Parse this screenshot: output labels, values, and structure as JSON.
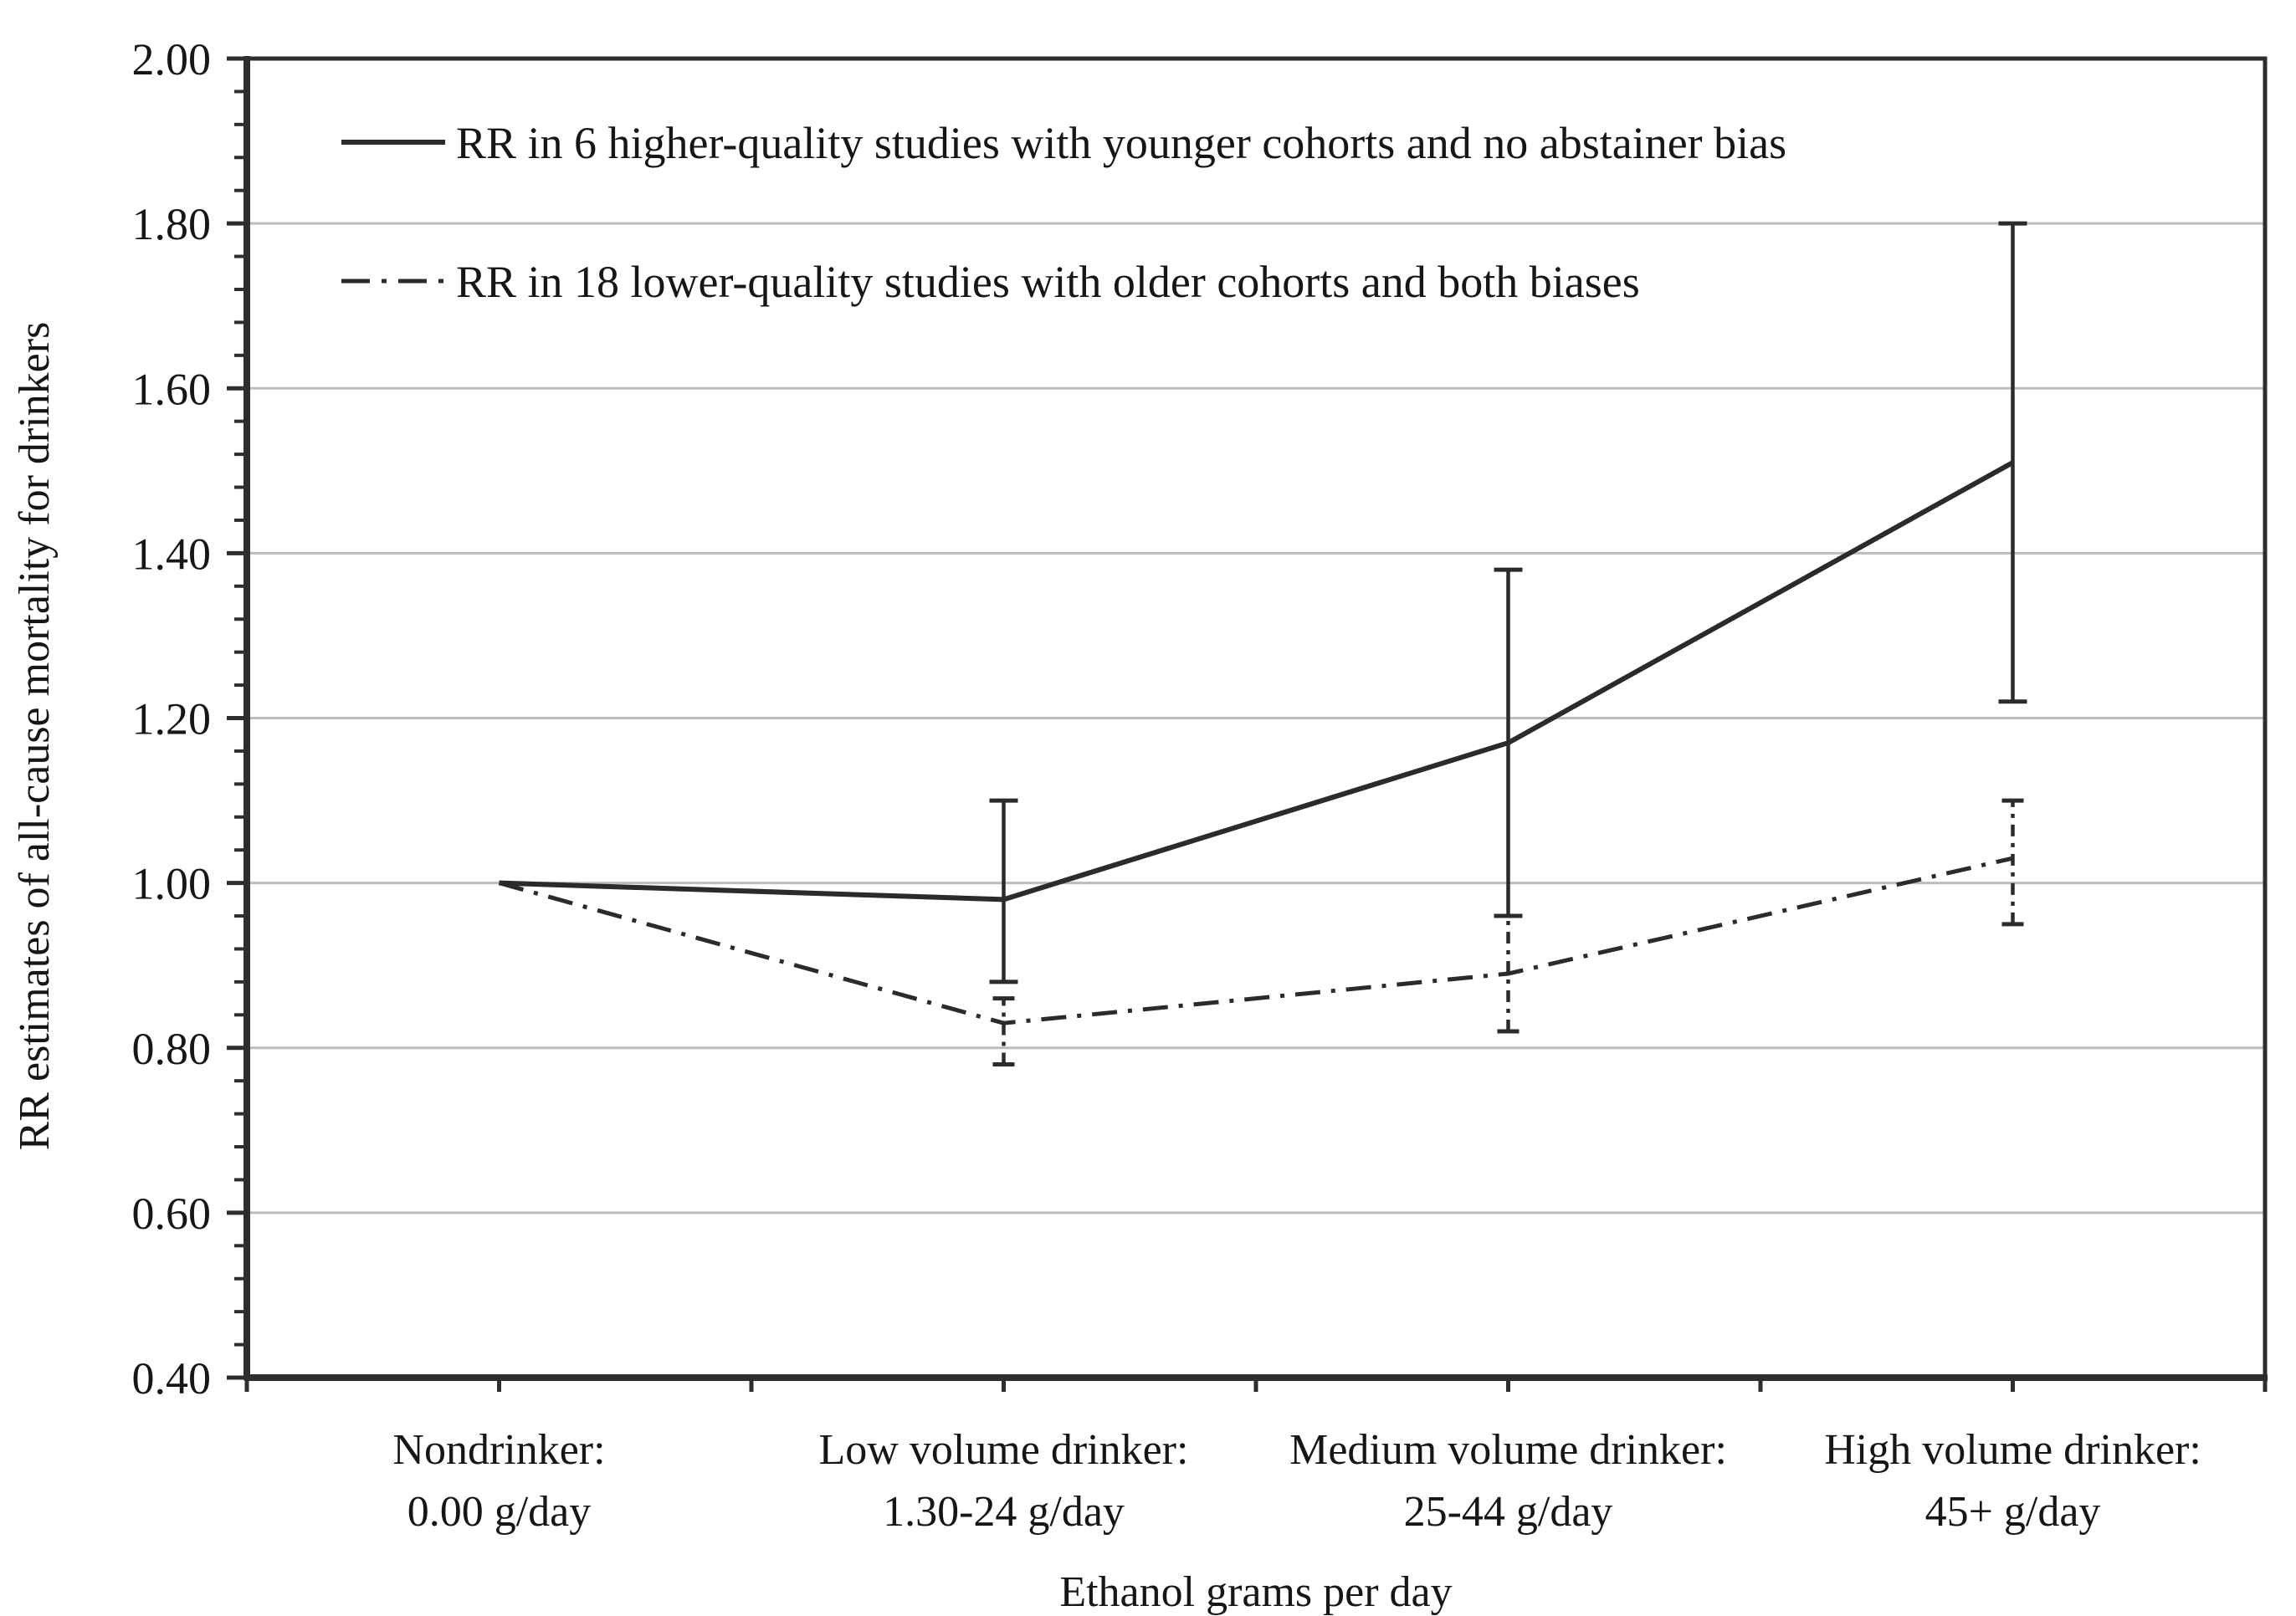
{
  "figure": {
    "background": "#ffffff",
    "text_color": "#161616",
    "line_color": "#2b2b2b",
    "grid_color": "#bcbcbc",
    "axis_color": "#2e2e2e"
  },
  "chart_data": {
    "type": "line",
    "title": "",
    "xlabel": "Ethanol grams per day",
    "ylabel": "RR estimates of all-cause mortality for drinkers",
    "ylim": [
      0.4,
      2.0
    ],
    "ytick_step": 0.2,
    "y_minor_step": 0.04,
    "ytick_labels": [
      "2.00",
      "1.80",
      "1.60",
      "1.40",
      "1.20",
      "1.00",
      "0.80",
      "0.60",
      "0.40"
    ],
    "grid": true,
    "legend_position": "top-left-inside",
    "categories": [
      {
        "line1": "Nondrinker:",
        "line2": "0.00 g/day"
      },
      {
        "line1": "Low volume drinker:",
        "line2": "1.30-24 g/day"
      },
      {
        "line1": "Medium volume drinker:",
        "line2": "25-44 g/day"
      },
      {
        "line1": "High volume drinker:",
        "line2": "45+ g/day"
      }
    ],
    "series": [
      {
        "name": "RR in 6 higher-quality studies with younger cohorts and no abstainer bias",
        "style": "solid",
        "values": [
          1.0,
          0.98,
          1.17,
          1.51
        ],
        "ci_low": [
          null,
          0.88,
          0.96,
          1.22
        ],
        "ci_high": [
          null,
          1.1,
          1.38,
          1.8
        ]
      },
      {
        "name": "RR in 18 lower-quality studies with older cohorts and both biases",
        "style": "dash-dot",
        "values": [
          1.0,
          0.83,
          0.89,
          1.03
        ],
        "ci_low": [
          null,
          0.78,
          0.82,
          0.95
        ],
        "ci_high": [
          null,
          0.86,
          0.96,
          1.1
        ]
      }
    ]
  }
}
